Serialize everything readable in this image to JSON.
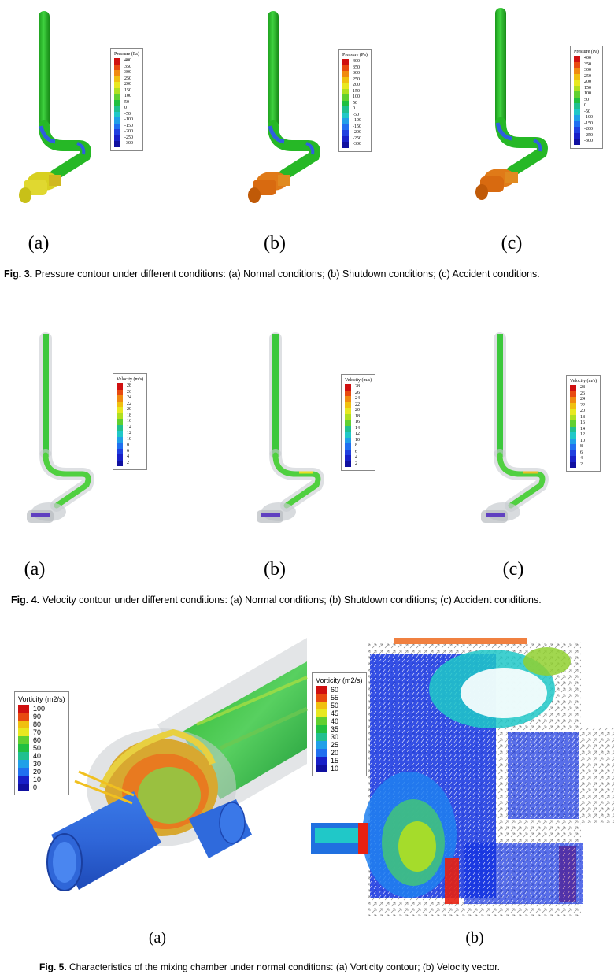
{
  "figure3": {
    "panels": [
      "(a)",
      "(b)",
      "(c)"
    ],
    "legend_title": "Pressure (Pa)",
    "legend_values": [
      "400",
      "350",
      "300",
      "250",
      "200",
      "150",
      "100",
      "50",
      "0",
      "-50",
      "-100",
      "-150",
      "-200",
      "-250",
      "-300"
    ],
    "caption_label": "Fig. 3.",
    "caption_text": " Pressure contour under different conditions: (a) Normal conditions; (b) Shutdown conditions; (c) Accident conditions."
  },
  "figure4": {
    "panels": [
      "(a)",
      "(b)",
      "(c)"
    ],
    "legend_title": "Velocity (m/s)",
    "legend_values": [
      "28",
      "26",
      "24",
      "22",
      "20",
      "18",
      "16",
      "14",
      "12",
      "10",
      "8",
      "6",
      "4",
      "2"
    ],
    "caption_label": "Fig. 4.",
    "caption_text": " Velocity contour under different conditions: (a) Normal conditions; (b) Shutdown conditions; (c) Accident conditions."
  },
  "figure5": {
    "panels": [
      "(a)",
      "(b)"
    ],
    "legend_a_title": "Vorticity (m2/s)",
    "legend_a_values": [
      "100",
      "90",
      "80",
      "70",
      "60",
      "50",
      "40",
      "30",
      "20",
      "10",
      "0"
    ],
    "legend_b_title": "Vorticity (m2/s)",
    "legend_b_values": [
      "60",
      "55",
      "50",
      "45",
      "40",
      "35",
      "30",
      "25",
      "20",
      "15",
      "10"
    ],
    "caption_label": "Fig. 5.",
    "caption_text": " Characteristics of the mixing chamber under normal conditions: (a) Vorticity contour; (b) Velocity vector."
  },
  "colors": {
    "pipe_green": "#2fc22f",
    "elbow_blue": "#2f5fe0",
    "fitting_yellow": "#d8d020",
    "fitting_orange": "#e07a18",
    "scale": [
      "#d01010",
      "#e84a10",
      "#f08a10",
      "#f0c010",
      "#e8e820",
      "#b0e020",
      "#60d030",
      "#20c040",
      "#20c090",
      "#20c8c8",
      "#20a0e8",
      "#2070f0",
      "#2040e0",
      "#1820c8",
      "#1010a0"
    ]
  }
}
